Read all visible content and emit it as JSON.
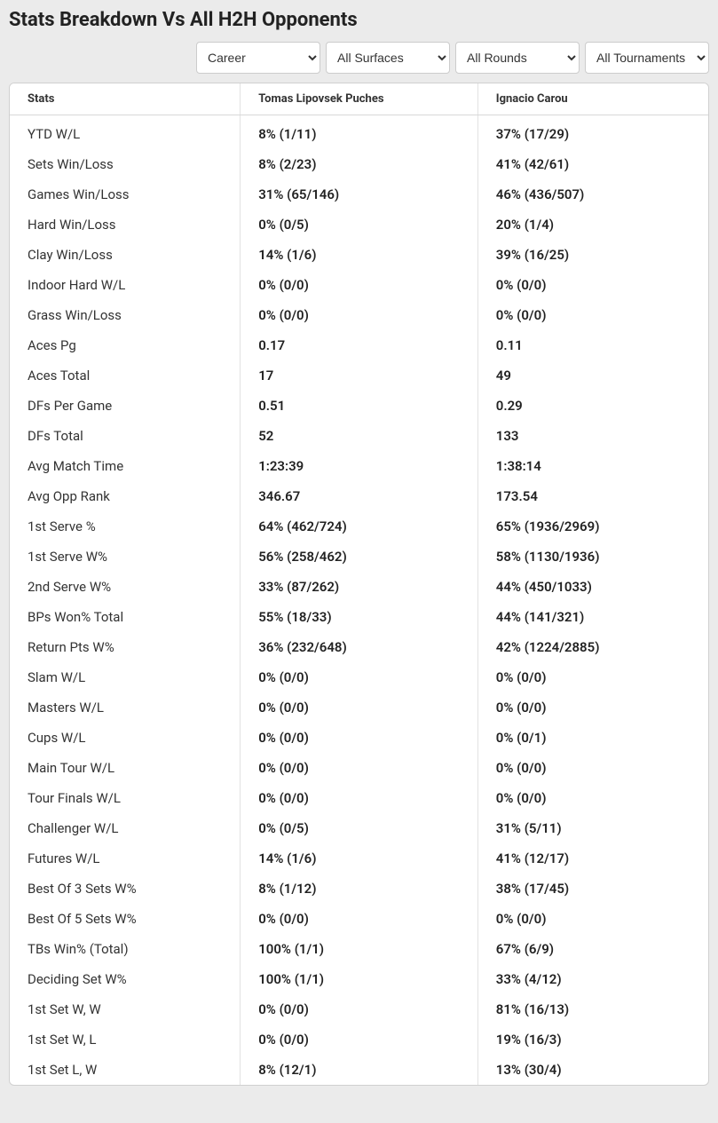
{
  "title": "Stats Breakdown Vs All H2H Opponents",
  "filters": {
    "period": "Career",
    "surface": "All Surfaces",
    "rounds": "All Rounds",
    "tournaments": "All Tournaments"
  },
  "columns": {
    "stat": "Stats",
    "p1": "Tomas Lipovsek Puches",
    "p2": "Ignacio Carou"
  },
  "rows": [
    {
      "stat": "YTD W/L",
      "p1": "8% (1/11)",
      "p2": "37% (17/29)"
    },
    {
      "stat": "Sets Win/Loss",
      "p1": "8% (2/23)",
      "p2": "41% (42/61)"
    },
    {
      "stat": "Games Win/Loss",
      "p1": "31% (65/146)",
      "p2": "46% (436/507)"
    },
    {
      "stat": "Hard Win/Loss",
      "p1": "0% (0/5)",
      "p2": "20% (1/4)"
    },
    {
      "stat": "Clay Win/Loss",
      "p1": "14% (1/6)",
      "p2": "39% (16/25)"
    },
    {
      "stat": "Indoor Hard W/L",
      "p1": "0% (0/0)",
      "p2": "0% (0/0)"
    },
    {
      "stat": "Grass Win/Loss",
      "p1": "0% (0/0)",
      "p2": "0% (0/0)"
    },
    {
      "stat": "Aces Pg",
      "p1": "0.17",
      "p2": "0.11"
    },
    {
      "stat": "Aces Total",
      "p1": "17",
      "p2": "49"
    },
    {
      "stat": "DFs Per Game",
      "p1": "0.51",
      "p2": "0.29"
    },
    {
      "stat": "DFs Total",
      "p1": "52",
      "p2": "133"
    },
    {
      "stat": "Avg Match Time",
      "p1": "1:23:39",
      "p2": "1:38:14"
    },
    {
      "stat": "Avg Opp Rank",
      "p1": "346.67",
      "p2": "173.54"
    },
    {
      "stat": "1st Serve %",
      "p1": "64% (462/724)",
      "p2": "65% (1936/2969)"
    },
    {
      "stat": "1st Serve W%",
      "p1": "56% (258/462)",
      "p2": "58% (1130/1936)"
    },
    {
      "stat": "2nd Serve W%",
      "p1": "33% (87/262)",
      "p2": "44% (450/1033)"
    },
    {
      "stat": "BPs Won% Total",
      "p1": "55% (18/33)",
      "p2": "44% (141/321)"
    },
    {
      "stat": "Return Pts W%",
      "p1": "36% (232/648)",
      "p2": "42% (1224/2885)"
    },
    {
      "stat": "Slam W/L",
      "p1": "0% (0/0)",
      "p2": "0% (0/0)"
    },
    {
      "stat": "Masters W/L",
      "p1": "0% (0/0)",
      "p2": "0% (0/0)"
    },
    {
      "stat": "Cups W/L",
      "p1": "0% (0/0)",
      "p2": "0% (0/1)"
    },
    {
      "stat": "Main Tour W/L",
      "p1": "0% (0/0)",
      "p2": "0% (0/0)"
    },
    {
      "stat": "Tour Finals W/L",
      "p1": "0% (0/0)",
      "p2": "0% (0/0)"
    },
    {
      "stat": "Challenger W/L",
      "p1": "0% (0/5)",
      "p2": "31% (5/11)"
    },
    {
      "stat": "Futures W/L",
      "p1": "14% (1/6)",
      "p2": "41% (12/17)"
    },
    {
      "stat": "Best Of 3 Sets W%",
      "p1": "8% (1/12)",
      "p2": "38% (17/45)"
    },
    {
      "stat": "Best Of 5 Sets W%",
      "p1": "0% (0/0)",
      "p2": "0% (0/0)"
    },
    {
      "stat": "TBs Win% (Total)",
      "p1": "100% (1/1)",
      "p2": "67% (6/9)"
    },
    {
      "stat": "Deciding Set W%",
      "p1": "100% (1/1)",
      "p2": "33% (4/12)"
    },
    {
      "stat": "1st Set W, W",
      "p1": "0% (0/0)",
      "p2": "81% (16/13)"
    },
    {
      "stat": "1st Set W, L",
      "p1": "0% (0/0)",
      "p2": "19% (16/3)"
    },
    {
      "stat": "1st Set L, W",
      "p1": "8% (12/1)",
      "p2": "13% (30/4)"
    }
  ]
}
